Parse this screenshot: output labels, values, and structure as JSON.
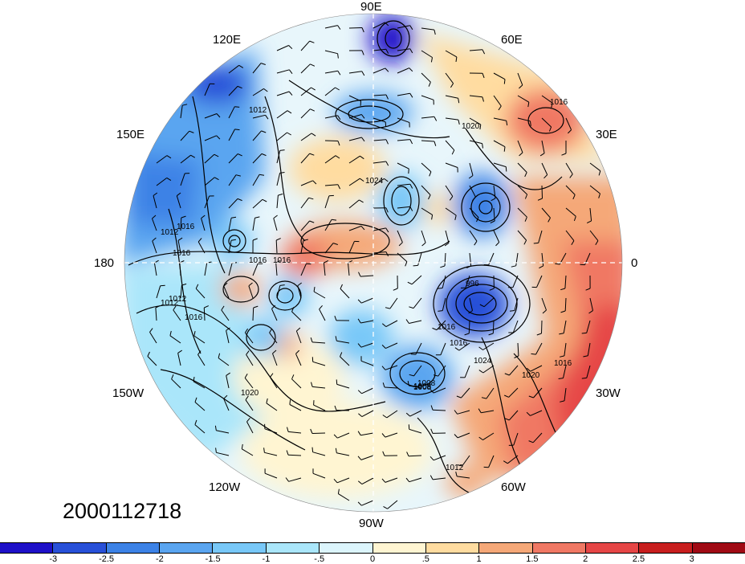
{
  "timestamp": "2000112718",
  "longitude_labels": {
    "n": "90E",
    "nne": "60E",
    "nnw": "120E",
    "ene": "30E",
    "wnw": "150E",
    "e": "0",
    "w": "180",
    "ese": "30W",
    "wsw": "150W",
    "sse": "60W",
    "ssw": "120W",
    "s": "90W"
  },
  "contour_labels": [
    "1016",
    "1012",
    "1020",
    "1024",
    "1008",
    "996",
    "1016",
    "1012",
    "1020",
    "1016",
    "1024",
    "1008",
    "1016",
    "1012",
    "1016",
    "1020",
    "1016",
    "1016",
    "1012",
    "1012",
    "1008",
    "1016",
    "1016"
  ],
  "colorbar": {
    "colors": [
      "#1e10c8",
      "#2850d8",
      "#3c82e6",
      "#5aa5f0",
      "#78c8f8",
      "#aae6fa",
      "#dcf5fc",
      "#fff5d2",
      "#ffdca0",
      "#f5a878",
      "#f07864",
      "#e64646",
      "#c81e1e",
      "#a00a14"
    ],
    "ticks": [
      "-3",
      "-2.5",
      "-2",
      "-1.5",
      "-1",
      "-.5",
      "0",
      ".5",
      "1",
      "1.5",
      "2",
      "2.5",
      "3"
    ]
  }
}
